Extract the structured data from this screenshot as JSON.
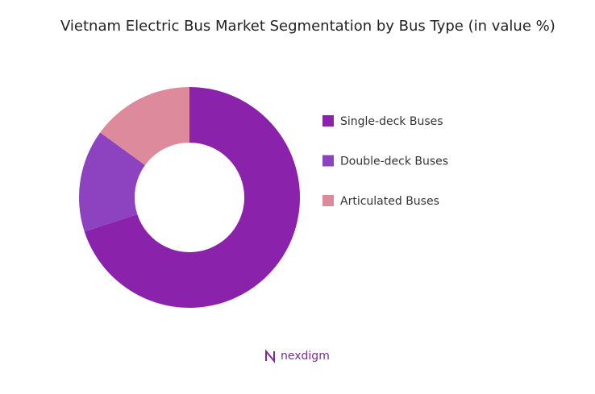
{
  "chart_data": {
    "type": "donut",
    "title": "Vietnam Electric Bus Market Segmentation by Bus Type (in value %)",
    "categories": [
      "Single-deck Buses",
      "Double-deck Buses",
      "Articulated Buses"
    ],
    "values": [
      70,
      15,
      15
    ],
    "colors": [
      "#8b22ab",
      "#8d43bf",
      "#dc8a9c"
    ],
    "legend": "right",
    "brand": "nexdigm"
  }
}
